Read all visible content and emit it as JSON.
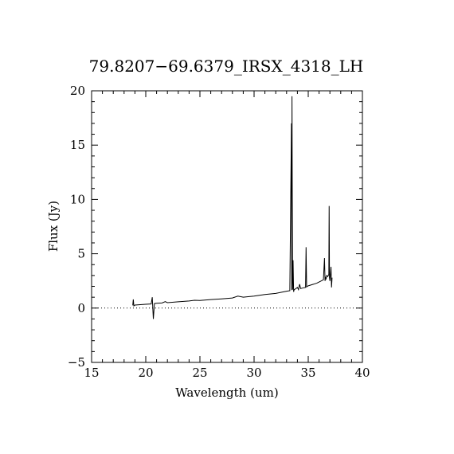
{
  "chart_data": {
    "type": "line",
    "title": "79.8207−69.6379_IRSX_4318_LH",
    "xlabel": "Wavelength (um)",
    "ylabel": "Flux (Jy)",
    "xlim": [
      15,
      40
    ],
    "ylim": [
      -5,
      20
    ],
    "xticks": [
      "15",
      "20",
      "25",
      "30",
      "35",
      "40"
    ],
    "yticks": [
      "−5",
      "0",
      "5",
      "10",
      "15",
      "20"
    ],
    "zero_line": "dotted",
    "series": [
      {
        "x": [
          18.8,
          18.85,
          18.9,
          19.0,
          19.5,
          20.0,
          20.5,
          20.6,
          20.7,
          20.8,
          21.0,
          21.5,
          21.8,
          22.0,
          23.0,
          24.0,
          24.5,
          25.0,
          26.0,
          27.0,
          28.0,
          28.5,
          29.0,
          30.0,
          31.0,
          32.0,
          33.0,
          33.3,
          33.45,
          33.48,
          33.5,
          33.55,
          33.6,
          33.65,
          33.7,
          33.8,
          34.0,
          34.1,
          34.2,
          34.3,
          34.5,
          34.75,
          34.8,
          34.85,
          34.9,
          35.0,
          35.5,
          35.8,
          36.0,
          36.2,
          36.4,
          36.5,
          36.55,
          36.6,
          36.65,
          36.7,
          36.8,
          36.9,
          36.93,
          36.96,
          37.0,
          37.1,
          37.15,
          37.2
        ],
        "y": [
          0.25,
          0.8,
          0.2,
          0.28,
          0.32,
          0.35,
          0.38,
          1.0,
          -1.0,
          0.42,
          0.44,
          0.47,
          0.6,
          0.5,
          0.58,
          0.65,
          0.72,
          0.7,
          0.78,
          0.85,
          0.93,
          1.1,
          1.0,
          1.1,
          1.25,
          1.35,
          1.55,
          1.6,
          17.0,
          1.65,
          19.5,
          1.7,
          4.4,
          1.5,
          1.7,
          1.75,
          1.9,
          1.7,
          2.2,
          1.8,
          1.85,
          1.9,
          5.6,
          1.95,
          2.0,
          2.05,
          2.2,
          2.3,
          2.4,
          2.5,
          2.6,
          4.6,
          2.5,
          2.8,
          2.7,
          3.0,
          2.9,
          3.1,
          9.4,
          2.8,
          2.5,
          3.8,
          1.9,
          2.8
        ]
      }
    ]
  }
}
